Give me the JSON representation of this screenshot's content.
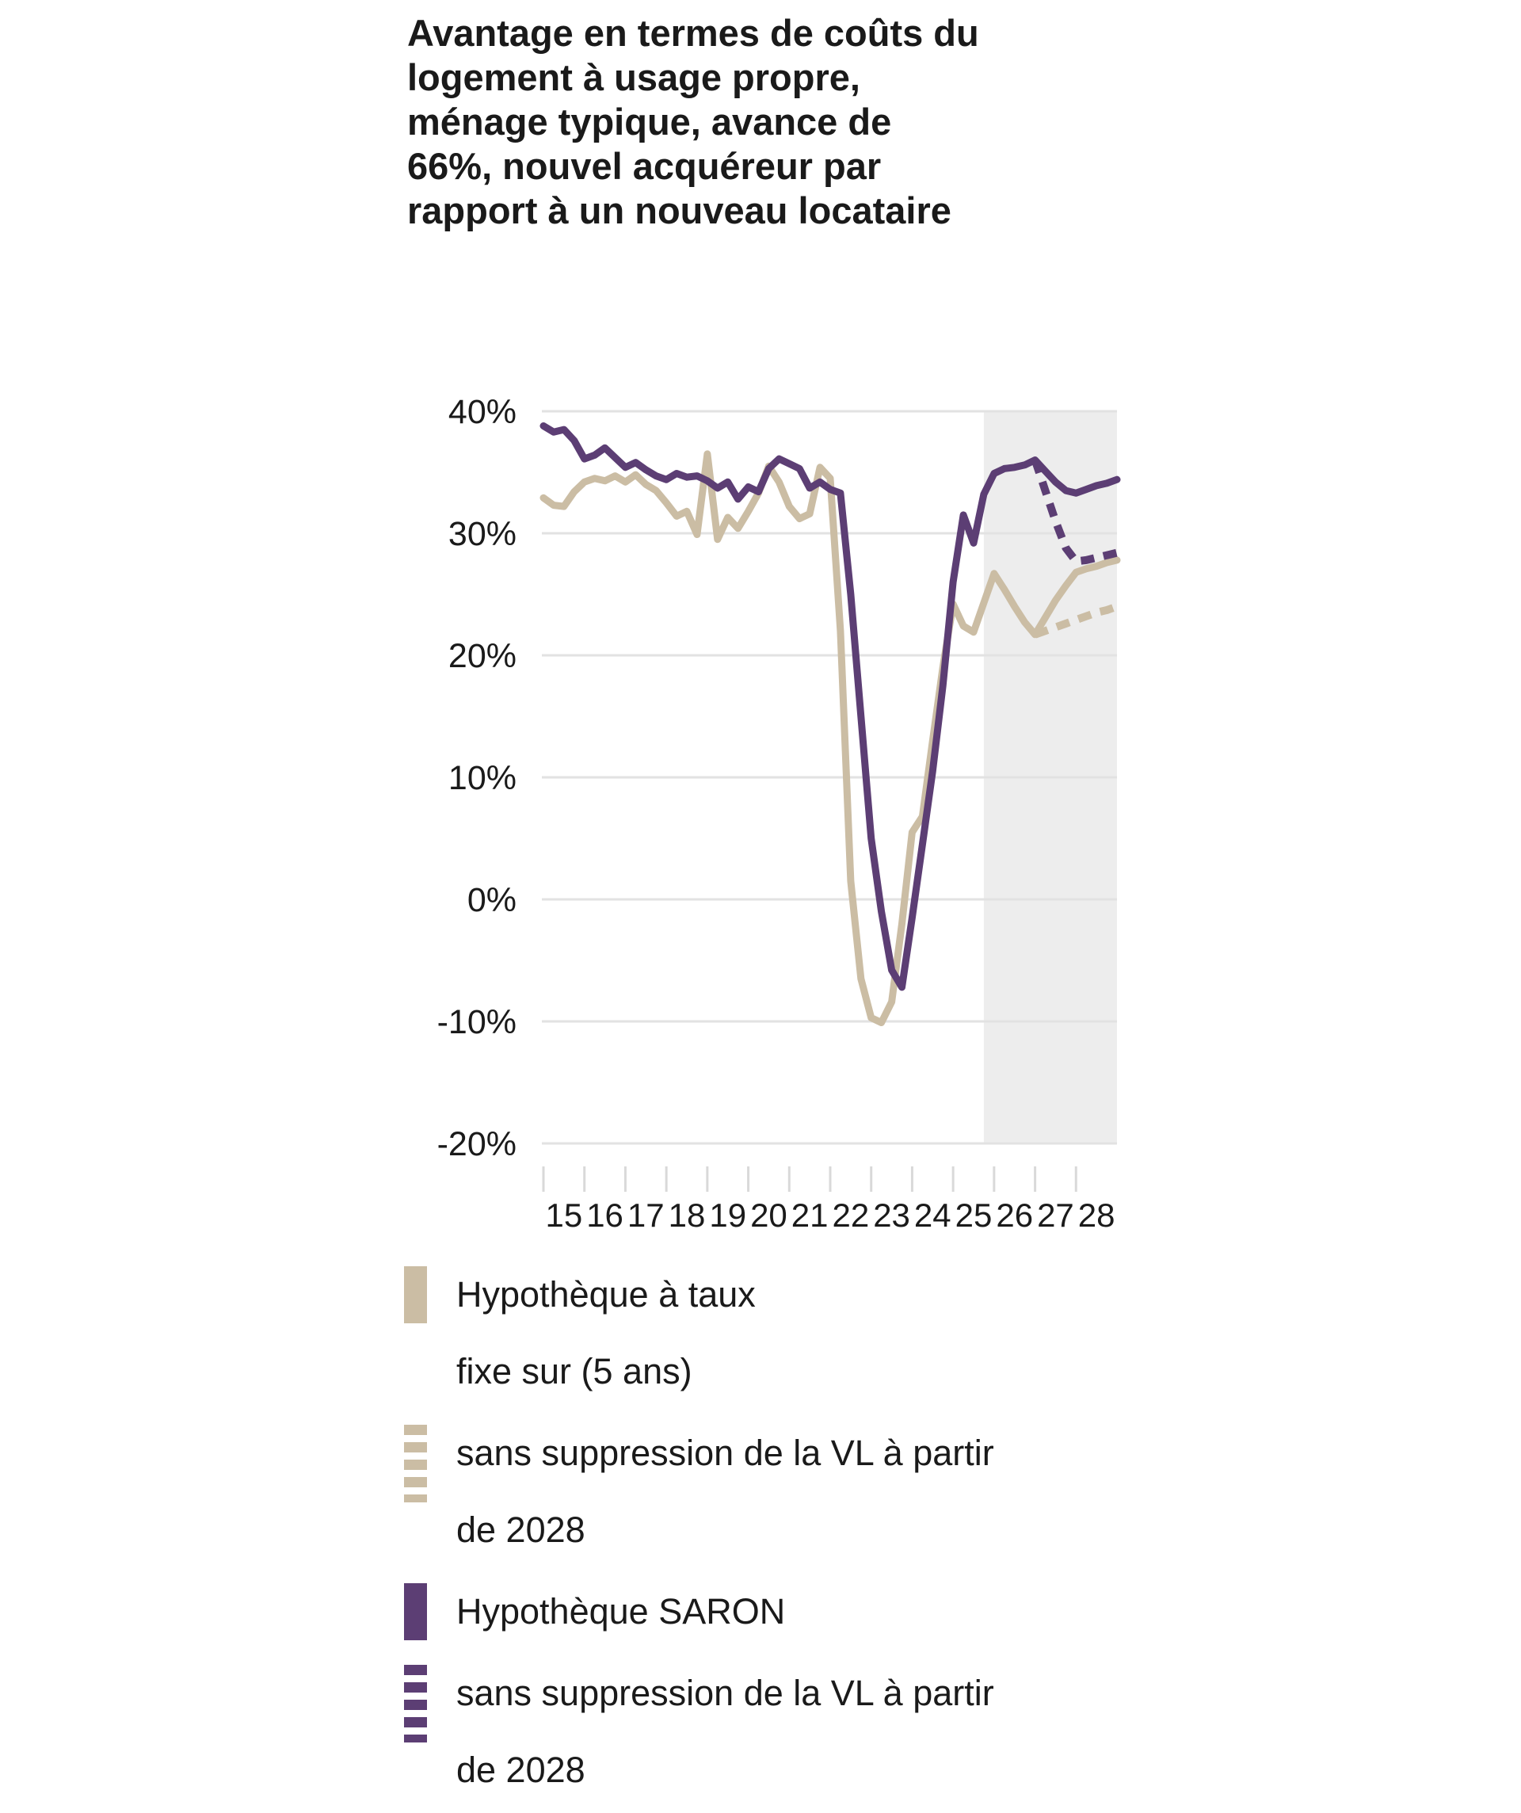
{
  "title_lines": [
    "Avantage en termes de coûts du",
    "logement à usage propre,",
    "ménage typique, avance de",
    "66%, nouvel acquéreur par",
    "rapport à un nouveau locataire"
  ],
  "colors": {
    "beige": "#cbbda4",
    "purple": "#5c3e74",
    "forecast_bg": "#ededed",
    "gridline": "#e2e2e2",
    "tick": "#d9d9d9",
    "text": "#1a1a1a"
  },
  "chart_data": {
    "type": "line",
    "title": "Avantage en termes de coûts du logement à usage propre, ménage typique, avance de 66%, nouvel acquéreur par rapport à un nouveau locataire",
    "xlabel": "",
    "ylabel": "",
    "ylim": [
      -20,
      40
    ],
    "xlim": [
      2015,
      2029
    ],
    "grid": "horizontal",
    "legend_position": "bottom",
    "ytick_values": [
      40,
      30,
      20,
      10,
      0,
      -10,
      -20
    ],
    "ytick_labels": [
      "40%",
      "30%",
      "20%",
      "10%",
      "0%",
      "-10%",
      "-20%"
    ],
    "xtick_values": [
      2015,
      2016,
      2017,
      2018,
      2019,
      2020,
      2021,
      2022,
      2023,
      2024,
      2025,
      2026,
      2027,
      2028
    ],
    "xtick_labels": [
      "15",
      "16",
      "17",
      "18",
      "19",
      "20",
      "21",
      "22",
      "23",
      "24",
      "25",
      "26",
      "27",
      "28"
    ],
    "forecast": {
      "start": 2025.75,
      "end": 2029
    },
    "series": [
      {
        "id": "hypotheque-taux-fixe",
        "name": "Hypothèque à taux fixe sur (5 ans)",
        "style": "solid",
        "color_key": "beige",
        "z": 2,
        "x": [
          2015,
          2015.25,
          2015.5,
          2015.75,
          2016,
          2016.25,
          2016.5,
          2016.75,
          2017,
          2017.25,
          2017.5,
          2017.75,
          2018,
          2018.25,
          2018.5,
          2018.75,
          2019,
          2019.25,
          2019.5,
          2019.75,
          2020,
          2020.25,
          2020.5,
          2020.75,
          2021,
          2021.25,
          2021.5,
          2021.75,
          2022,
          2022.25,
          2022.5,
          2022.75,
          2023,
          2023.25,
          2023.5,
          2023.75,
          2024,
          2024.25,
          2024.5,
          2024.75,
          2025,
          2025.25,
          2025.5,
          2025.75,
          2026,
          2026.25,
          2026.5,
          2026.75,
          2027,
          2027.25,
          2027.5,
          2027.75,
          2028,
          2028.25,
          2028.5,
          2028.75,
          2029
        ],
        "y": [
          32.9,
          32.3,
          32.2,
          33.4,
          34.2,
          34.5,
          34.3,
          34.7,
          34.2,
          34.8,
          34.0,
          33.5,
          32.5,
          31.4,
          31.8,
          29.9,
          36.5,
          29.5,
          31.3,
          30.4,
          31.8,
          33.3,
          35.5,
          34.2,
          32.2,
          31.2,
          31.6,
          35.4,
          34.5,
          22.0,
          1.5,
          -6.5,
          -9.7,
          -10.1,
          -8.4,
          -2.0,
          5.5,
          6.8,
          13.0,
          19.0,
          24.2,
          22.4,
          21.9,
          24.3,
          26.7,
          25.4,
          24.0,
          22.7,
          21.7,
          23.1,
          24.5,
          25.7,
          26.8,
          27.1,
          27.3,
          27.6,
          27.8
        ]
      },
      {
        "id": "taux-fixe-sans-suppression-vl",
        "name": "Hypothèque à taux fixe — sans suppression de la VL à partir de 2028",
        "style": "dashed",
        "color_key": "beige",
        "z": 1,
        "x": [
          2027,
          2027.25,
          2027.5,
          2027.75,
          2028,
          2028.25,
          2028.5,
          2028.75,
          2029
        ],
        "y": [
          21.7,
          22.0,
          22.3,
          22.6,
          22.9,
          23.2,
          23.5,
          23.7,
          24.0
        ]
      },
      {
        "id": "hypotheque-saron",
        "name": "Hypothèque SARON",
        "style": "solid",
        "color_key": "purple",
        "z": 4,
        "x": [
          2015,
          2015.25,
          2015.5,
          2015.75,
          2016,
          2016.25,
          2016.5,
          2016.75,
          2017,
          2017.25,
          2017.5,
          2017.75,
          2018,
          2018.25,
          2018.5,
          2018.75,
          2019,
          2019.25,
          2019.5,
          2019.75,
          2020,
          2020.25,
          2020.5,
          2020.75,
          2021,
          2021.25,
          2021.5,
          2021.75,
          2022,
          2022.25,
          2022.5,
          2022.75,
          2023,
          2023.25,
          2023.5,
          2023.75,
          2024,
          2024.25,
          2024.5,
          2024.75,
          2025,
          2025.25,
          2025.5,
          2025.75,
          2026,
          2026.25,
          2026.5,
          2026.75,
          2027,
          2027.25,
          2027.5,
          2027.75,
          2028,
          2028.25,
          2028.5,
          2028.75,
          2029
        ],
        "y": [
          38.8,
          38.3,
          38.5,
          37.6,
          36.1,
          36.4,
          37.0,
          36.2,
          35.4,
          35.8,
          35.2,
          34.7,
          34.4,
          34.9,
          34.6,
          34.7,
          34.3,
          33.7,
          34.2,
          32.8,
          33.8,
          33.4,
          35.3,
          36.1,
          35.7,
          35.3,
          33.7,
          34.2,
          33.6,
          33.3,
          25.0,
          15.0,
          5.0,
          -1.0,
          -5.8,
          -7.2,
          -1.5,
          4.5,
          10.5,
          17.5,
          26.0,
          31.5,
          29.2,
          33.2,
          34.9,
          35.3,
          35.4,
          35.6,
          36.0,
          35.1,
          34.2,
          33.5,
          33.3,
          33.6,
          33.9,
          34.1,
          34.4
        ]
      },
      {
        "id": "saron-sans-suppression-vl",
        "name": "Hypothèque SARON — sans suppression de la VL à partir de 2028",
        "style": "dashed",
        "color_key": "purple",
        "z": 3,
        "x": [
          2027,
          2027.25,
          2027.5,
          2027.75,
          2028,
          2028.25,
          2028.5,
          2028.75,
          2029
        ],
        "y": [
          36.0,
          33.5,
          31.0,
          28.8,
          27.7,
          27.8,
          28.0,
          28.2,
          28.4
        ]
      }
    ]
  },
  "legend": {
    "items": [
      {
        "id": "hypotheque-taux-fixe",
        "style": "solid",
        "color_key": "beige",
        "lines": [
          "Hypothèque à taux",
          "fixe sur (5 ans)"
        ]
      },
      {
        "id": "taux-fixe-sans-suppression-vl",
        "style": "dashed",
        "color_key": "beige",
        "lines": [
          "sans suppression de la VL à partir",
          "de 2028"
        ]
      },
      {
        "id": "hypotheque-saron",
        "style": "solid",
        "color_key": "purple",
        "lines": [
          "Hypothèque SARON"
        ]
      },
      {
        "id": "saron-sans-suppression-vl",
        "style": "dashed",
        "color_key": "purple",
        "lines": [
          "sans suppression de la VL à partir",
          "de 2028"
        ]
      }
    ]
  }
}
